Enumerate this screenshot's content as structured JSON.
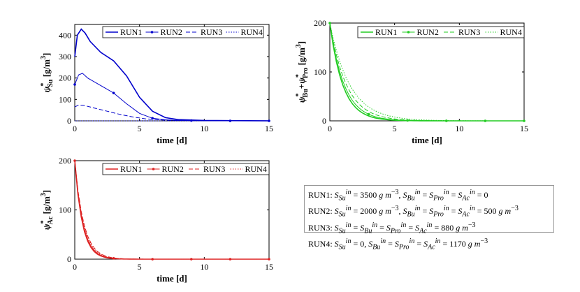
{
  "chart_data": [
    {
      "id": "su",
      "type": "line",
      "xlabel": "time [d]",
      "ylabel_parts": {
        "psi": "ψ",
        "star": "*",
        "sub": "Su",
        "unit": "[g/m",
        "unit_exp": "3",
        "unit_close": "]"
      },
      "xlim": [
        0,
        15
      ],
      "ylim": [
        0,
        450
      ],
      "xticks": [
        0,
        5,
        10,
        15
      ],
      "yticks": [
        0,
        100,
        200,
        300,
        400
      ],
      "grid": false,
      "legend": "top",
      "color": "#0000cc",
      "series": [
        {
          "name": "RUN1",
          "style": "solid",
          "x": [
            0,
            0.2,
            0.5,
            0.8,
            1.2,
            2,
            3,
            4,
            5,
            6,
            7,
            8,
            10,
            12,
            15
          ],
          "y": [
            300,
            400,
            428,
            410,
            370,
            320,
            280,
            210,
            110,
            45,
            15,
            6,
            2,
            1,
            0
          ]
        },
        {
          "name": "RUN2",
          "style": "marker",
          "x": [
            0,
            0.3,
            0.6,
            1,
            2,
            3,
            4,
            5,
            6,
            7,
            8,
            10,
            12,
            15
          ],
          "y": [
            170,
            215,
            222,
            200,
            165,
            130,
            80,
            35,
            12,
            5,
            2,
            1,
            0,
            0
          ]
        },
        {
          "name": "RUN3",
          "style": "dashed",
          "x": [
            0,
            0.3,
            0.7,
            1.5,
            2.5,
            3.5,
            4.5,
            5.5,
            7,
            9,
            12,
            15
          ],
          "y": [
            65,
            74,
            72,
            60,
            45,
            30,
            18,
            9,
            3,
            1,
            0,
            0
          ]
        },
        {
          "name": "RUN4",
          "style": "dotted",
          "x": [
            0,
            15
          ],
          "y": [
            0,
            0
          ]
        }
      ]
    },
    {
      "id": "bupro",
      "type": "line",
      "xlabel": "time [d]",
      "ylabel_parts": {
        "psi": "ψ",
        "star": "*",
        "sub": "Bu",
        "plus": "+",
        "sub2": "Pro",
        "unit": "[g/m",
        "unit_exp": "3",
        "unit_close": "]"
      },
      "xlim": [
        0,
        15
      ],
      "ylim": [
        0,
        200
      ],
      "xticks": [
        0,
        5,
        10,
        15
      ],
      "yticks": [
        0,
        100,
        200
      ],
      "grid": false,
      "legend": "top",
      "color": "#22cc22",
      "series": [
        {
          "name": "RUN1",
          "style": "solid",
          "k": 1.0
        },
        {
          "name": "RUN2",
          "style": "marker",
          "k": 0.9
        },
        {
          "name": "RUN3",
          "style": "dashed",
          "k": 0.78
        },
        {
          "name": "RUN4",
          "style": "dotted",
          "k": 0.65
        }
      ]
    },
    {
      "id": "ac",
      "type": "line",
      "xlabel": "time [d]",
      "ylabel_parts": {
        "psi": "ψ",
        "star": "*",
        "sub": "Ac",
        "unit": "[g/m",
        "unit_exp": "3",
        "unit_close": "]"
      },
      "xlim": [
        0,
        15
      ],
      "ylim": [
        0,
        200
      ],
      "xticks": [
        0,
        5,
        10,
        15
      ],
      "yticks": [
        0,
        100,
        200
      ],
      "grid": false,
      "legend": "top",
      "color": "#dd2222",
      "series": [
        {
          "name": "RUN1",
          "style": "solid",
          "k": 1.7
        },
        {
          "name": "RUN2",
          "style": "marker",
          "k": 1.6
        },
        {
          "name": "RUN3",
          "style": "dashed",
          "k": 1.45
        },
        {
          "name": "RUN4",
          "style": "dotted",
          "k": 1.5
        }
      ]
    }
  ],
  "infobox": {
    "lines": [
      "RUN1: S_Su^in = 3500 g m^-3, S_Bu^in = S_Pro^in = S_Ac^in = 0",
      "RUN2: S_Su^in = 2000 g m^-3, S_Bu^in = S_Pro^in = S_Ac^in = 500 g m^-3",
      "RUN3: S_Su^in = S_Bu^in = S_Pro^in = S_Ac^in = 880 g m^-3",
      "RUN4: S_Su^in = 0, S_Bu^in = S_Pro^in = S_Ac^in = 1170 g m^-3"
    ]
  }
}
